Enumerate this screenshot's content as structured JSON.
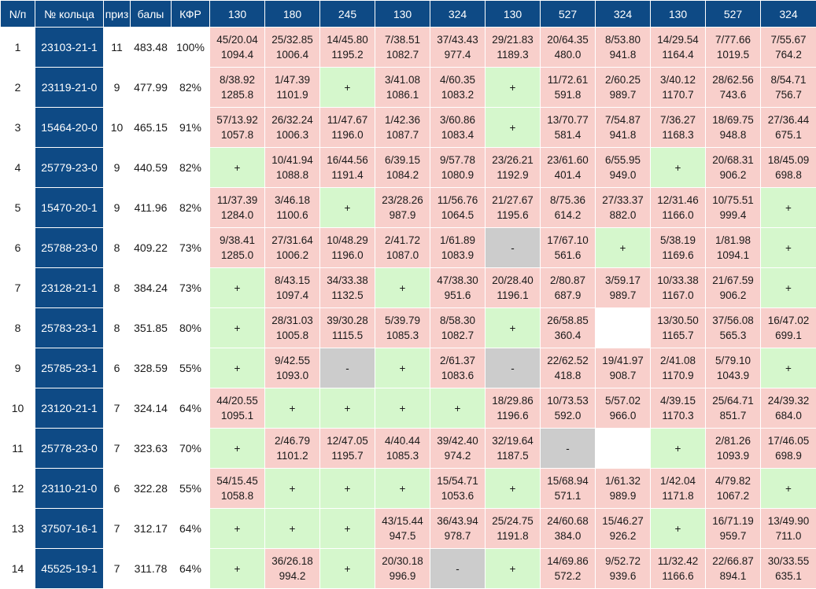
{
  "table": {
    "headers": [
      "N/п",
      "№ кольца",
      "приз",
      "балы",
      "КФР"
    ],
    "race_headers": [
      "130",
      "180",
      "245",
      "130",
      "324",
      "130",
      "527",
      "324",
      "130",
      "527",
      "324"
    ],
    "rows": [
      {
        "num": "1",
        "ring": "23103-21-1",
        "prizes": "11",
        "score": "483.48",
        "kfr": "100%",
        "cells": [
          {
            "t": "pink",
            "l1": "45/20.04",
            "l2": "1094.4"
          },
          {
            "t": "pink",
            "l1": "25/32.85",
            "l2": "1006.4"
          },
          {
            "t": "pink",
            "l1": "14/45.80",
            "l2": "1195.2"
          },
          {
            "t": "pink",
            "l1": "7/38.51",
            "l2": "1082.7"
          },
          {
            "t": "pink",
            "l1": "37/43.43",
            "l2": "977.4"
          },
          {
            "t": "pink",
            "l1": "29/21.83",
            "l2": "1189.3"
          },
          {
            "t": "pink",
            "l1": "20/64.35",
            "l2": "480.0"
          },
          {
            "t": "pink",
            "l1": "8/53.80",
            "l2": "941.8"
          },
          {
            "t": "pink",
            "l1": "14/29.54",
            "l2": "1164.4"
          },
          {
            "t": "pink",
            "l1": "7/77.66",
            "l2": "1019.5"
          },
          {
            "t": "pink",
            "l1": "7/55.67",
            "l2": "764.2"
          }
        ]
      },
      {
        "num": "2",
        "ring": "23119-21-0",
        "prizes": "9",
        "score": "477.99",
        "kfr": "82%",
        "cells": [
          {
            "t": "pink",
            "l1": "8/38.92",
            "l2": "1285.8"
          },
          {
            "t": "pink",
            "l1": "1/47.39",
            "l2": "1101.9"
          },
          {
            "t": "green",
            "l1": "+",
            "l2": ""
          },
          {
            "t": "pink",
            "l1": "3/41.08",
            "l2": "1086.1"
          },
          {
            "t": "pink",
            "l1": "4/60.35",
            "l2": "1083.2"
          },
          {
            "t": "green",
            "l1": "+",
            "l2": ""
          },
          {
            "t": "pink",
            "l1": "11/72.61",
            "l2": "591.8"
          },
          {
            "t": "pink",
            "l1": "2/60.25",
            "l2": "989.7"
          },
          {
            "t": "pink",
            "l1": "3/40.12",
            "l2": "1170.7"
          },
          {
            "t": "pink",
            "l1": "28/62.56",
            "l2": "743.6"
          },
          {
            "t": "pink",
            "l1": "8/54.71",
            "l2": "756.7"
          }
        ]
      },
      {
        "num": "3",
        "ring": "15464-20-0",
        "prizes": "10",
        "score": "465.15",
        "kfr": "91%",
        "cells": [
          {
            "t": "pink",
            "l1": "57/13.92",
            "l2": "1057.8"
          },
          {
            "t": "pink",
            "l1": "26/32.24",
            "l2": "1006.3"
          },
          {
            "t": "pink",
            "l1": "11/47.67",
            "l2": "1196.0"
          },
          {
            "t": "pink",
            "l1": "1/42.36",
            "l2": "1087.7"
          },
          {
            "t": "pink",
            "l1": "3/60.86",
            "l2": "1083.4"
          },
          {
            "t": "green",
            "l1": "+",
            "l2": ""
          },
          {
            "t": "pink",
            "l1": "13/70.77",
            "l2": "581.4"
          },
          {
            "t": "pink",
            "l1": "7/54.87",
            "l2": "941.8"
          },
          {
            "t": "pink",
            "l1": "7/36.27",
            "l2": "1168.3"
          },
          {
            "t": "pink",
            "l1": "18/69.75",
            "l2": "948.8"
          },
          {
            "t": "pink",
            "l1": "27/36.44",
            "l2": "675.1"
          }
        ]
      },
      {
        "num": "4",
        "ring": "25779-23-0",
        "prizes": "9",
        "score": "440.59",
        "kfr": "82%",
        "cells": [
          {
            "t": "green",
            "l1": "+",
            "l2": ""
          },
          {
            "t": "pink",
            "l1": "10/41.94",
            "l2": "1088.8"
          },
          {
            "t": "pink",
            "l1": "16/44.56",
            "l2": "1191.4"
          },
          {
            "t": "pink",
            "l1": "6/39.15",
            "l2": "1084.2"
          },
          {
            "t": "pink",
            "l1": "9/57.78",
            "l2": "1080.9"
          },
          {
            "t": "pink",
            "l1": "23/26.21",
            "l2": "1192.9"
          },
          {
            "t": "pink",
            "l1": "23/61.60",
            "l2": "401.4"
          },
          {
            "t": "pink",
            "l1": "6/55.95",
            "l2": "949.0"
          },
          {
            "t": "green",
            "l1": "+",
            "l2": ""
          },
          {
            "t": "pink",
            "l1": "20/68.31",
            "l2": "906.2"
          },
          {
            "t": "pink",
            "l1": "18/45.09",
            "l2": "698.8"
          }
        ]
      },
      {
        "num": "5",
        "ring": "15470-20-1",
        "prizes": "9",
        "score": "411.96",
        "kfr": "82%",
        "cells": [
          {
            "t": "pink",
            "l1": "11/37.39",
            "l2": "1284.0"
          },
          {
            "t": "pink",
            "l1": "3/46.18",
            "l2": "1100.6"
          },
          {
            "t": "green",
            "l1": "+",
            "l2": ""
          },
          {
            "t": "pink",
            "l1": "23/28.26",
            "l2": "987.9"
          },
          {
            "t": "pink",
            "l1": "11/56.76",
            "l2": "1064.5"
          },
          {
            "t": "pink",
            "l1": "21/27.67",
            "l2": "1195.6"
          },
          {
            "t": "pink",
            "l1": "8/75.36",
            "l2": "614.2"
          },
          {
            "t": "pink",
            "l1": "27/33.37",
            "l2": "882.0"
          },
          {
            "t": "pink",
            "l1": "12/31.46",
            "l2": "1166.0"
          },
          {
            "t": "pink",
            "l1": "10/75.51",
            "l2": "999.4"
          },
          {
            "t": "green",
            "l1": "+",
            "l2": ""
          }
        ]
      },
      {
        "num": "6",
        "ring": "25788-23-0",
        "prizes": "8",
        "score": "409.22",
        "kfr": "73%",
        "cells": [
          {
            "t": "pink",
            "l1": "9/38.41",
            "l2": "1285.0"
          },
          {
            "t": "pink",
            "l1": "27/31.64",
            "l2": "1006.2"
          },
          {
            "t": "pink",
            "l1": "10/48.29",
            "l2": "1196.0"
          },
          {
            "t": "pink",
            "l1": "2/41.72",
            "l2": "1087.0"
          },
          {
            "t": "pink",
            "l1": "1/61.89",
            "l2": "1083.9"
          },
          {
            "t": "gray",
            "l1": "-",
            "l2": ""
          },
          {
            "t": "pink",
            "l1": "17/67.10",
            "l2": "561.6"
          },
          {
            "t": "green",
            "l1": "+",
            "l2": ""
          },
          {
            "t": "pink",
            "l1": "5/38.19",
            "l2": "1169.6"
          },
          {
            "t": "pink",
            "l1": "1/81.98",
            "l2": "1094.1"
          },
          {
            "t": "green",
            "l1": "+",
            "l2": ""
          }
        ]
      },
      {
        "num": "7",
        "ring": "23128-21-1",
        "prizes": "8",
        "score": "384.24",
        "kfr": "73%",
        "cells": [
          {
            "t": "green",
            "l1": "+",
            "l2": ""
          },
          {
            "t": "pink",
            "l1": "8/43.15",
            "l2": "1097.4"
          },
          {
            "t": "pink",
            "l1": "34/33.38",
            "l2": "1132.5"
          },
          {
            "t": "green",
            "l1": "+",
            "l2": ""
          },
          {
            "t": "pink",
            "l1": "47/38.30",
            "l2": "951.6"
          },
          {
            "t": "pink",
            "l1": "20/28.40",
            "l2": "1196.1"
          },
          {
            "t": "pink",
            "l1": "2/80.87",
            "l2": "687.9"
          },
          {
            "t": "pink",
            "l1": "3/59.17",
            "l2": "989.7"
          },
          {
            "t": "pink",
            "l1": "10/33.38",
            "l2": "1167.0"
          },
          {
            "t": "pink",
            "l1": "21/67.59",
            "l2": "906.2"
          },
          {
            "t": "green",
            "l1": "+",
            "l2": ""
          }
        ]
      },
      {
        "num": "8",
        "ring": "25783-23-1",
        "prizes": "8",
        "score": "351.85",
        "kfr": "80%",
        "cells": [
          {
            "t": "green",
            "l1": "+",
            "l2": ""
          },
          {
            "t": "pink",
            "l1": "28/31.03",
            "l2": "1005.8"
          },
          {
            "t": "pink",
            "l1": "39/30.28",
            "l2": "1115.5"
          },
          {
            "t": "pink",
            "l1": "5/39.79",
            "l2": "1085.3"
          },
          {
            "t": "pink",
            "l1": "8/58.30",
            "l2": "1082.7"
          },
          {
            "t": "green",
            "l1": "+",
            "l2": ""
          },
          {
            "t": "pink",
            "l1": "26/58.85",
            "l2": "360.4"
          },
          {
            "t": "empty",
            "l1": "",
            "l2": ""
          },
          {
            "t": "pink",
            "l1": "13/30.50",
            "l2": "1165.7"
          },
          {
            "t": "pink",
            "l1": "37/56.08",
            "l2": "565.3"
          },
          {
            "t": "pink",
            "l1": "16/47.02",
            "l2": "699.1"
          }
        ]
      },
      {
        "num": "9",
        "ring": "25785-23-1",
        "prizes": "6",
        "score": "328.59",
        "kfr": "55%",
        "cells": [
          {
            "t": "green",
            "l1": "+",
            "l2": ""
          },
          {
            "t": "pink",
            "l1": "9/42.55",
            "l2": "1093.0"
          },
          {
            "t": "gray",
            "l1": "-",
            "l2": ""
          },
          {
            "t": "green",
            "l1": "+",
            "l2": ""
          },
          {
            "t": "pink",
            "l1": "2/61.37",
            "l2": "1083.6"
          },
          {
            "t": "gray",
            "l1": "-",
            "l2": ""
          },
          {
            "t": "pink",
            "l1": "22/62.52",
            "l2": "418.8"
          },
          {
            "t": "pink",
            "l1": "19/41.97",
            "l2": "908.7"
          },
          {
            "t": "pink",
            "l1": "2/41.08",
            "l2": "1170.9"
          },
          {
            "t": "pink",
            "l1": "5/79.10",
            "l2": "1043.9"
          },
          {
            "t": "green",
            "l1": "+",
            "l2": ""
          }
        ]
      },
      {
        "num": "10",
        "ring": "23120-21-1",
        "prizes": "7",
        "score": "324.14",
        "kfr": "64%",
        "cells": [
          {
            "t": "pink",
            "l1": "44/20.55",
            "l2": "1095.1"
          },
          {
            "t": "green",
            "l1": "+",
            "l2": ""
          },
          {
            "t": "green",
            "l1": "+",
            "l2": ""
          },
          {
            "t": "green",
            "l1": "+",
            "l2": ""
          },
          {
            "t": "green",
            "l1": "+",
            "l2": ""
          },
          {
            "t": "pink",
            "l1": "18/29.86",
            "l2": "1196.6"
          },
          {
            "t": "pink",
            "l1": "10/73.53",
            "l2": "592.0"
          },
          {
            "t": "pink",
            "l1": "5/57.02",
            "l2": "966.0"
          },
          {
            "t": "pink",
            "l1": "4/39.15",
            "l2": "1170.3"
          },
          {
            "t": "pink",
            "l1": "25/64.71",
            "l2": "851.7"
          },
          {
            "t": "pink",
            "l1": "24/39.32",
            "l2": "684.0"
          }
        ]
      },
      {
        "num": "11",
        "ring": "25778-23-0",
        "prizes": "7",
        "score": "323.63",
        "kfr": "70%",
        "cells": [
          {
            "t": "green",
            "l1": "+",
            "l2": ""
          },
          {
            "t": "pink",
            "l1": "2/46.79",
            "l2": "1101.2"
          },
          {
            "t": "pink",
            "l1": "12/47.05",
            "l2": "1195.7"
          },
          {
            "t": "pink",
            "l1": "4/40.44",
            "l2": "1085.3"
          },
          {
            "t": "pink",
            "l1": "39/42.40",
            "l2": "974.2"
          },
          {
            "t": "pink",
            "l1": "32/19.64",
            "l2": "1187.5"
          },
          {
            "t": "gray",
            "l1": "-",
            "l2": ""
          },
          {
            "t": "empty",
            "l1": "",
            "l2": ""
          },
          {
            "t": "green",
            "l1": "+",
            "l2": ""
          },
          {
            "t": "pink",
            "l1": "2/81.26",
            "l2": "1093.9"
          },
          {
            "t": "pink",
            "l1": "17/46.05",
            "l2": "698.9"
          }
        ]
      },
      {
        "num": "12",
        "ring": "23110-21-0",
        "prizes": "6",
        "score": "322.28",
        "kfr": "55%",
        "cells": [
          {
            "t": "pink",
            "l1": "54/15.45",
            "l2": "1058.8"
          },
          {
            "t": "green",
            "l1": "+",
            "l2": ""
          },
          {
            "t": "green",
            "l1": "+",
            "l2": ""
          },
          {
            "t": "green",
            "l1": "+",
            "l2": ""
          },
          {
            "t": "pink",
            "l1": "15/54.71",
            "l2": "1053.6"
          },
          {
            "t": "green",
            "l1": "+",
            "l2": ""
          },
          {
            "t": "pink",
            "l1": "15/68.94",
            "l2": "571.1"
          },
          {
            "t": "pink",
            "l1": "1/61.32",
            "l2": "989.9"
          },
          {
            "t": "pink",
            "l1": "1/42.04",
            "l2": "1171.8"
          },
          {
            "t": "pink",
            "l1": "4/79.82",
            "l2": "1067.2"
          },
          {
            "t": "green",
            "l1": "+",
            "l2": ""
          }
        ]
      },
      {
        "num": "13",
        "ring": "37507-16-1",
        "prizes": "7",
        "score": "312.17",
        "kfr": "64%",
        "cells": [
          {
            "t": "green",
            "l1": "+",
            "l2": ""
          },
          {
            "t": "green",
            "l1": "+",
            "l2": ""
          },
          {
            "t": "green",
            "l1": "+",
            "l2": ""
          },
          {
            "t": "pink",
            "l1": "43/15.44",
            "l2": "947.5"
          },
          {
            "t": "pink",
            "l1": "36/43.94",
            "l2": "978.7"
          },
          {
            "t": "pink",
            "l1": "25/24.75",
            "l2": "1191.8"
          },
          {
            "t": "pink",
            "l1": "24/60.68",
            "l2": "384.0"
          },
          {
            "t": "pink",
            "l1": "15/46.27",
            "l2": "926.2"
          },
          {
            "t": "green",
            "l1": "+",
            "l2": ""
          },
          {
            "t": "pink",
            "l1": "16/71.19",
            "l2": "959.7"
          },
          {
            "t": "pink",
            "l1": "13/49.90",
            "l2": "711.0"
          }
        ]
      },
      {
        "num": "14",
        "ring": "45525-19-1",
        "prizes": "7",
        "score": "311.78",
        "kfr": "64%",
        "cells": [
          {
            "t": "green",
            "l1": "+",
            "l2": ""
          },
          {
            "t": "pink",
            "l1": "36/26.18",
            "l2": "994.2"
          },
          {
            "t": "green",
            "l1": "+",
            "l2": ""
          },
          {
            "t": "pink",
            "l1": "20/30.18",
            "l2": "996.9"
          },
          {
            "t": "gray",
            "l1": "-",
            "l2": ""
          },
          {
            "t": "green",
            "l1": "+",
            "l2": ""
          },
          {
            "t": "pink",
            "l1": "14/69.86",
            "l2": "572.2"
          },
          {
            "t": "pink",
            "l1": "9/52.72",
            "l2": "939.6"
          },
          {
            "t": "pink",
            "l1": "11/32.42",
            "l2": "1166.6"
          },
          {
            "t": "pink",
            "l1": "22/66.87",
            "l2": "894.1"
          },
          {
            "t": "pink",
            "l1": "30/33.55",
            "l2": "635.1"
          }
        ]
      }
    ]
  },
  "colors": {
    "header_bg": "#0e4a85",
    "result_pink": "#f8cfcb",
    "plus_green": "#d5f7cc",
    "dash_gray": "#cccccc"
  }
}
